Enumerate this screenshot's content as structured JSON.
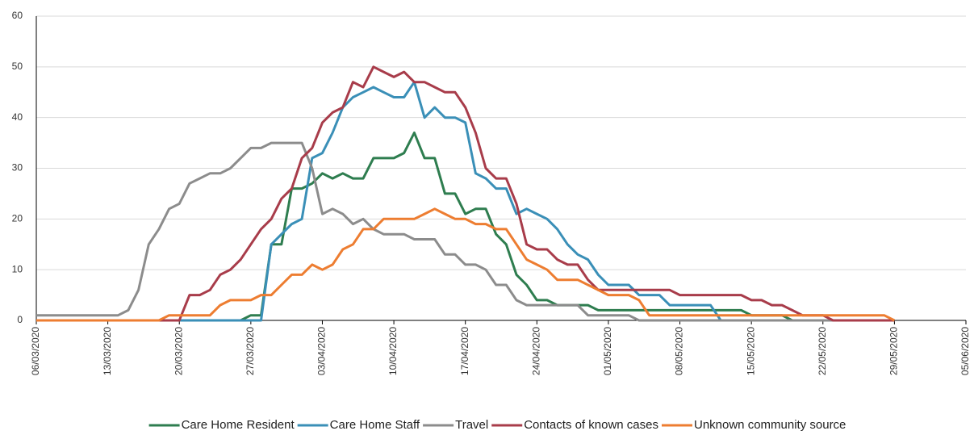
{
  "chart_data": {
    "type": "line",
    "categories": [
      "06/03/2020",
      null,
      null,
      null,
      null,
      null,
      null,
      "13/03/2020",
      null,
      null,
      null,
      null,
      null,
      null,
      "20/03/2020",
      null,
      null,
      null,
      null,
      null,
      null,
      "27/03/2020",
      null,
      null,
      null,
      null,
      null,
      null,
      "03/04/2020",
      null,
      null,
      null,
      null,
      null,
      null,
      "10/04/2020",
      null,
      null,
      null,
      null,
      null,
      null,
      "17/04/2020",
      null,
      null,
      null,
      null,
      null,
      null,
      "24/04/2020",
      null,
      null,
      null,
      null,
      null,
      null,
      "01/05/2020",
      null,
      null,
      null,
      null,
      null,
      null,
      "08/05/2020",
      null,
      null,
      null,
      null,
      null,
      null,
      "15/05/2020",
      null,
      null,
      null,
      null,
      null,
      null,
      "22/05/2020",
      null,
      null,
      null,
      null,
      null,
      null,
      "29/05/2020",
      null,
      null,
      null,
      null,
      null,
      null,
      "05/06/2020"
    ],
    "ylim": [
      0,
      60
    ],
    "yticks": [
      0,
      10,
      20,
      30,
      40,
      50,
      60
    ],
    "grid": true,
    "series": [
      {
        "name": "Care Home Resident",
        "color": "#2e7d4f",
        "values": [
          0,
          0,
          0,
          0,
          0,
          0,
          0,
          0,
          0,
          0,
          0,
          0,
          0,
          0,
          0,
          0,
          0,
          0,
          0,
          0,
          0,
          1,
          1,
          15,
          15,
          26,
          26,
          27,
          29,
          28,
          29,
          28,
          28,
          32,
          32,
          32,
          33,
          37,
          32,
          32,
          25,
          25,
          21,
          22,
          22,
          17,
          15,
          9,
          7,
          4,
          4,
          3,
          3,
          3,
          3,
          2,
          2,
          2,
          2,
          2,
          2,
          2,
          2,
          2,
          2,
          2,
          2,
          2,
          2,
          2,
          1,
          1,
          1,
          1,
          0,
          0,
          0,
          0,
          0,
          0,
          0,
          0,
          0,
          0,
          0,
          null,
          null,
          null,
          null,
          null,
          null,
          null
        ]
      },
      {
        "name": "Care Home Staff",
        "color": "#3a8fb7",
        "values": [
          0,
          0,
          0,
          0,
          0,
          0,
          0,
          0,
          0,
          0,
          0,
          0,
          0,
          0,
          0,
          0,
          0,
          0,
          0,
          0,
          0,
          0,
          0,
          15,
          17,
          19,
          20,
          32,
          33,
          37,
          42,
          44,
          45,
          46,
          45,
          44,
          44,
          47,
          40,
          42,
          40,
          40,
          39,
          29,
          28,
          26,
          26,
          21,
          22,
          21,
          20,
          18,
          15,
          13,
          12,
          9,
          7,
          7,
          7,
          5,
          5,
          5,
          3,
          3,
          3,
          3,
          3,
          0,
          0,
          0,
          0,
          0,
          0,
          0,
          0,
          0,
          0,
          0,
          0,
          0,
          0,
          0,
          0,
          0,
          0,
          null,
          null,
          null,
          null,
          null,
          null,
          null
        ]
      },
      {
        "name": "Travel",
        "color": "#8c8c8c",
        "values": [
          1,
          1,
          1,
          1,
          1,
          1,
          1,
          1,
          1,
          2,
          6,
          15,
          18,
          22,
          23,
          27,
          28,
          29,
          29,
          30,
          32,
          34,
          34,
          35,
          35,
          35,
          35,
          30,
          21,
          22,
          21,
          19,
          20,
          18,
          17,
          17,
          17,
          16,
          16,
          16,
          13,
          13,
          11,
          11,
          10,
          7,
          7,
          4,
          3,
          3,
          3,
          3,
          3,
          3,
          1,
          1,
          1,
          1,
          1,
          0,
          0,
          0,
          0,
          0,
          0,
          0,
          0,
          0,
          0,
          0,
          0,
          0,
          0,
          0,
          0,
          0,
          0,
          0,
          0,
          0,
          0,
          0,
          0,
          0,
          0,
          null,
          null,
          null,
          null,
          null,
          null,
          null
        ]
      },
      {
        "name": "Contacts of known cases",
        "color": "#a83c4a",
        "values": [
          0,
          0,
          0,
          0,
          0,
          0,
          0,
          0,
          0,
          0,
          0,
          0,
          0,
          0,
          0,
          5,
          5,
          6,
          9,
          10,
          12,
          15,
          18,
          20,
          24,
          26,
          32,
          34,
          39,
          41,
          42,
          47,
          46,
          50,
          49,
          48,
          49,
          47,
          47,
          46,
          45,
          45,
          42,
          37,
          30,
          28,
          28,
          23,
          15,
          14,
          14,
          12,
          11,
          11,
          8,
          6,
          6,
          6,
          6,
          6,
          6,
          6,
          6,
          5,
          5,
          5,
          5,
          5,
          5,
          5,
          4,
          4,
          3,
          3,
          2,
          1,
          1,
          1,
          0,
          0,
          0,
          0,
          0,
          0,
          0,
          null,
          null,
          null,
          null,
          null,
          null,
          null
        ]
      },
      {
        "name": "Unknown community source",
        "color": "#ed7d31",
        "values": [
          0,
          0,
          0,
          0,
          0,
          0,
          0,
          0,
          0,
          0,
          0,
          0,
          0,
          1,
          1,
          1,
          1,
          1,
          3,
          4,
          4,
          4,
          5,
          5,
          7,
          9,
          9,
          11,
          10,
          11,
          14,
          15,
          18,
          18,
          20,
          20,
          20,
          20,
          21,
          22,
          21,
          20,
          20,
          19,
          19,
          18,
          18,
          15,
          12,
          11,
          10,
          8,
          8,
          8,
          7,
          6,
          5,
          5,
          5,
          4,
          1,
          1,
          1,
          1,
          1,
          1,
          1,
          1,
          1,
          1,
          1,
          1,
          1,
          1,
          1,
          1,
          1,
          1,
          1,
          1,
          1,
          1,
          1,
          1,
          0,
          null,
          null,
          null,
          null,
          null,
          null,
          null
        ]
      }
    ]
  }
}
